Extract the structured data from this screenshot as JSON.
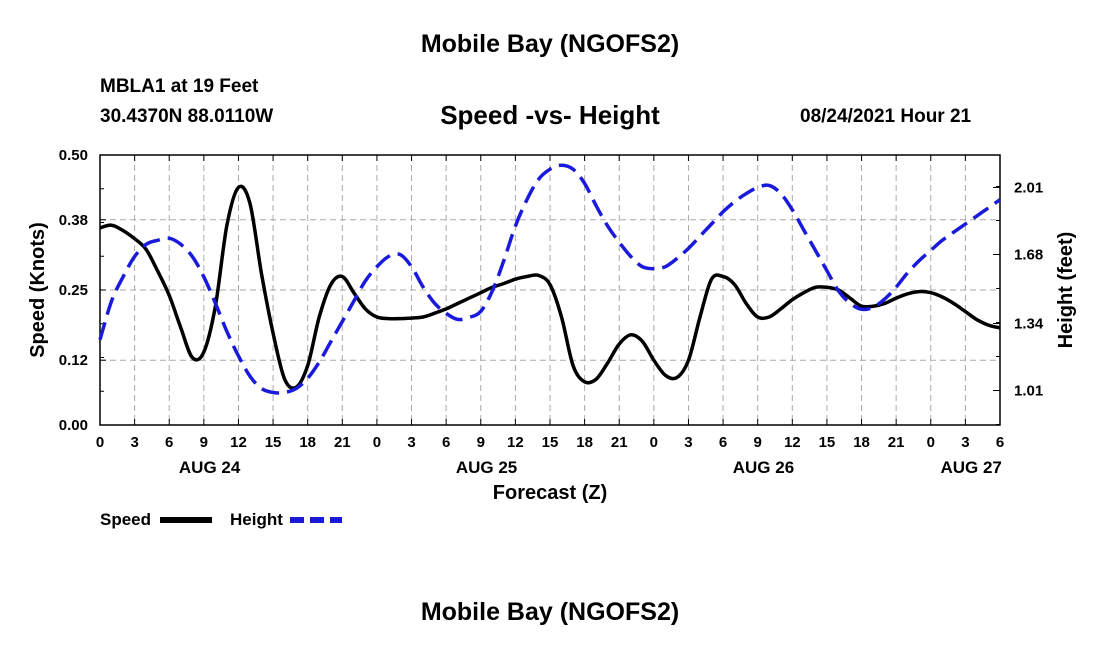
{
  "header": {
    "title": "Mobile Bay (NGOFS2)",
    "station": "MBLA1 at 19 Feet",
    "coords": "30.4370N  88.0110W",
    "subtitle": "Speed -vs- Height",
    "timestamp": "08/24/2021 Hour 21"
  },
  "footer": {
    "title": "Mobile Bay (NGOFS2)"
  },
  "chart_data": {
    "type": "line",
    "title": "Speed -vs- Height",
    "xlabel": "Forecast (Z)",
    "ylabel_left": "Speed (Knots)",
    "ylabel_right": "Height (feet)",
    "x_range_hours": [
      0,
      78
    ],
    "x_start_time": "2021-08-24T00Z",
    "x_tick_labels": [
      "0",
      "3",
      "6",
      "9",
      "12",
      "15",
      "18",
      "21",
      "0",
      "3",
      "6",
      "9",
      "12",
      "15",
      "18",
      "21",
      "0",
      "3",
      "6",
      "9",
      "12",
      "15",
      "18",
      "21",
      "0",
      "3",
      "6"
    ],
    "day_labels": [
      {
        "label": "AUG 24",
        "hour": 9.5
      },
      {
        "label": "AUG 25",
        "hour": 33.5
      },
      {
        "label": "AUG 26",
        "hour": 57.5
      },
      {
        "label": "AUG 27",
        "hour": 75.5
      }
    ],
    "y_left": {
      "ticks": [
        "0.00",
        "0.12",
        "0.25",
        "0.38",
        "0.50"
      ],
      "range": [
        0,
        0.5
      ]
    },
    "y_right": {
      "ticks": [
        "1.01",
        "1.34",
        "1.68",
        "2.01"
      ],
      "range": [
        0.84,
        2.17
      ]
    },
    "grid": true,
    "legend_position": "bottom-left",
    "series": [
      {
        "name": "Speed",
        "axis": "left",
        "color": "#000000",
        "style": "solid",
        "x": [
          0,
          1,
          2,
          3,
          4,
          5,
          6,
          7,
          8,
          9,
          10,
          11,
          12,
          13,
          14,
          15,
          16,
          17,
          18,
          19,
          20,
          21,
          22,
          23,
          24,
          25,
          26,
          27,
          28,
          29,
          30,
          31,
          32,
          33,
          34,
          35,
          36,
          37,
          38,
          39,
          40,
          41,
          42,
          43,
          44,
          45,
          46,
          47,
          48,
          49,
          50,
          51,
          52,
          53,
          54,
          55,
          56,
          57,
          58,
          59,
          60,
          61,
          62,
          63,
          64,
          65,
          66,
          67,
          68,
          69,
          70,
          71,
          72,
          73,
          74,
          75,
          76,
          77,
          78
        ],
        "y": [
          0.365,
          0.37,
          0.36,
          0.345,
          0.325,
          0.285,
          0.24,
          0.18,
          0.125,
          0.135,
          0.22,
          0.37,
          0.44,
          0.41,
          0.28,
          0.17,
          0.085,
          0.07,
          0.11,
          0.2,
          0.26,
          0.275,
          0.245,
          0.215,
          0.2,
          0.197,
          0.197,
          0.198,
          0.2,
          0.207,
          0.215,
          0.225,
          0.235,
          0.245,
          0.255,
          0.262,
          0.27,
          0.275,
          0.277,
          0.26,
          0.2,
          0.11,
          0.08,
          0.085,
          0.115,
          0.15,
          0.167,
          0.155,
          0.12,
          0.092,
          0.088,
          0.12,
          0.2,
          0.27,
          0.275,
          0.26,
          0.225,
          0.2,
          0.2,
          0.215,
          0.232,
          0.245,
          0.255,
          0.255,
          0.25,
          0.235,
          0.22,
          0.22,
          0.225,
          0.235,
          0.243,
          0.247,
          0.245,
          0.237,
          0.225,
          0.21,
          0.195,
          0.185,
          0.18
        ]
      },
      {
        "name": "Height",
        "axis": "right",
        "color": "#1a1adc",
        "style": "dashed",
        "x": [
          0,
          1,
          2,
          3,
          4,
          5,
          6,
          7,
          8,
          9,
          10,
          11,
          12,
          13,
          14,
          15,
          16,
          17,
          18,
          19,
          20,
          21,
          22,
          23,
          24,
          25,
          26,
          27,
          28,
          29,
          30,
          31,
          32,
          33,
          34,
          35,
          36,
          37,
          38,
          39,
          40,
          41,
          42,
          43,
          44,
          45,
          46,
          47,
          48,
          49,
          50,
          51,
          52,
          53,
          54,
          55,
          56,
          57,
          58,
          59,
          60,
          61,
          62,
          63,
          64,
          65,
          66,
          67,
          68,
          69,
          70,
          71,
          72,
          73,
          74,
          75,
          76,
          77,
          78
        ],
        "y": [
          1.26,
          1.45,
          1.57,
          1.67,
          1.73,
          1.75,
          1.76,
          1.73,
          1.67,
          1.57,
          1.44,
          1.3,
          1.18,
          1.08,
          1.02,
          1.0,
          1.0,
          1.02,
          1.07,
          1.15,
          1.25,
          1.35,
          1.45,
          1.55,
          1.62,
          1.67,
          1.68,
          1.62,
          1.52,
          1.44,
          1.39,
          1.36,
          1.37,
          1.4,
          1.5,
          1.65,
          1.82,
          1.95,
          2.05,
          2.1,
          2.12,
          2.1,
          2.03,
          1.92,
          1.82,
          1.74,
          1.67,
          1.62,
          1.61,
          1.62,
          1.66,
          1.71,
          1.77,
          1.83,
          1.89,
          1.94,
          1.98,
          2.01,
          2.02,
          1.98,
          1.9,
          1.8,
          1.7,
          1.6,
          1.5,
          1.44,
          1.41,
          1.42,
          1.46,
          1.52,
          1.59,
          1.65,
          1.7,
          1.75,
          1.79,
          1.83,
          1.87,
          1.91,
          1.95
        ]
      }
    ]
  }
}
